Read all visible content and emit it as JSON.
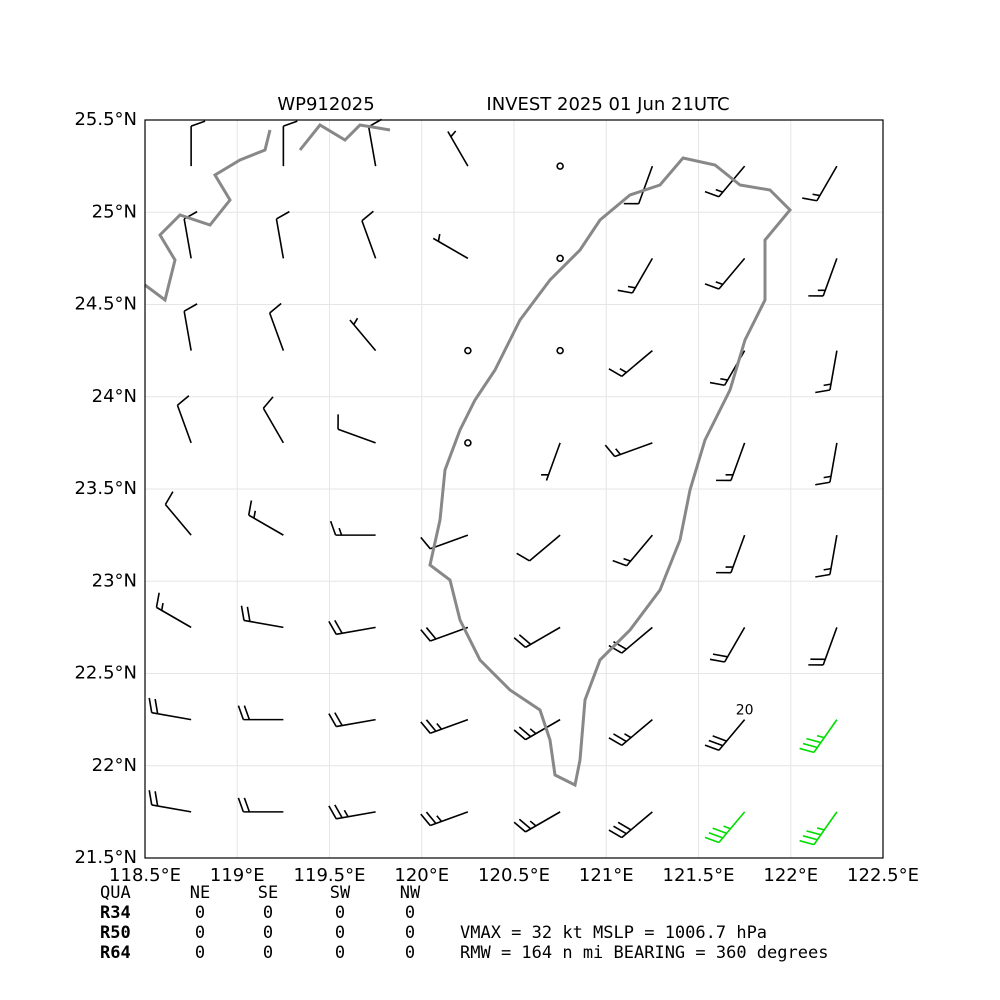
{
  "chart_data": {
    "type": "barbs",
    "title_left": "WP912025",
    "title_right": "INVEST 2025 01 Jun 21UTC",
    "xlim": [
      118.5,
      122.5
    ],
    "ylim": [
      21.5,
      25.5
    ],
    "xticks": [
      {
        "value": 118.5,
        "label": "118.5°E"
      },
      {
        "value": 119,
        "label": "119°E"
      },
      {
        "value": 119.5,
        "label": "119.5°E"
      },
      {
        "value": 120,
        "label": "120°E"
      },
      {
        "value": 120.5,
        "label": "120.5°E"
      },
      {
        "value": 121,
        "label": "121°E"
      },
      {
        "value": 121.5,
        "label": "121.5°E"
      },
      {
        "value": 122,
        "label": "122°E"
      },
      {
        "value": 122.5,
        "label": "122.5°E"
      }
    ],
    "yticks": [
      {
        "value": 21.5,
        "label": "21.5°N"
      },
      {
        "value": 22,
        "label": "22°N"
      },
      {
        "value": 22.5,
        "label": "22.5°N"
      },
      {
        "value": 23,
        "label": "23°N"
      },
      {
        "value": 23.5,
        "label": "23.5°N"
      },
      {
        "value": 24,
        "label": "24°N"
      },
      {
        "value": 24.5,
        "label": "24.5°N"
      },
      {
        "value": 25,
        "label": "25°N"
      },
      {
        "value": 25.5,
        "label": "25.5°N"
      }
    ],
    "grid": true,
    "wind": {
      "lon": [
        118.75,
        119.25,
        119.75,
        120.25,
        120.75,
        121.25,
        121.75,
        122.25
      ],
      "lat": [
        25.25,
        24.75,
        24.25,
        23.75,
        23.25,
        22.75,
        22.25,
        21.75
      ],
      "speed": [
        [
          10,
          10,
          10,
          5,
          0,
          10,
          15,
          15
        ],
        [
          10,
          10,
          10,
          5,
          0,
          15,
          15,
          15
        ],
        [
          10,
          10,
          5,
          0,
          0,
          15,
          15,
          15
        ],
        [
          10,
          10,
          10,
          0,
          5,
          15,
          15,
          15
        ],
        [
          10,
          15,
          15,
          10,
          10,
          15,
          15,
          15
        ],
        [
          15,
          20,
          20,
          20,
          20,
          20,
          20,
          20
        ],
        [
          20,
          20,
          20,
          25,
          25,
          25,
          30,
          35
        ],
        [
          20,
          20,
          25,
          25,
          25,
          30,
          35,
          35
        ]
      ],
      "direction": [
        [
          0,
          0,
          350,
          330,
          0,
          200,
          220,
          210
        ],
        [
          350,
          350,
          340,
          300,
          0,
          210,
          220,
          200
        ],
        [
          350,
          340,
          320,
          0,
          0,
          230,
          210,
          190
        ],
        [
          340,
          330,
          290,
          0,
          200,
          250,
          200,
          190
        ],
        [
          320,
          300,
          270,
          250,
          230,
          220,
          200,
          190
        ],
        [
          300,
          280,
          260,
          250,
          240,
          230,
          210,
          200
        ],
        [
          280,
          270,
          260,
          250,
          240,
          230,
          220,
          215
        ],
        [
          280,
          270,
          260,
          250,
          240,
          230,
          220,
          215
        ]
      ],
      "color": "#000000",
      "gale_color": "#00dd00",
      "gale_threshold": 34
    },
    "contour_label": {
      "text": "20",
      "lon": 121.75,
      "lat": 22.3
    },
    "radii_table": {
      "header": [
        "QUA",
        "NE",
        "SE",
        "SW",
        "NW"
      ],
      "rows": [
        {
          "label": "R34",
          "values": [
            0,
            0,
            0,
            0
          ]
        },
        {
          "label": "R50",
          "values": [
            0,
            0,
            0,
            0
          ]
        },
        {
          "label": "R64",
          "values": [
            0,
            0,
            0,
            0
          ]
        }
      ]
    },
    "info_lines": [
      "VMAX =  32 kt MSLP = 1006.7 hPa",
      "RMW = 164 n mi BEARING = 360 degrees"
    ]
  }
}
